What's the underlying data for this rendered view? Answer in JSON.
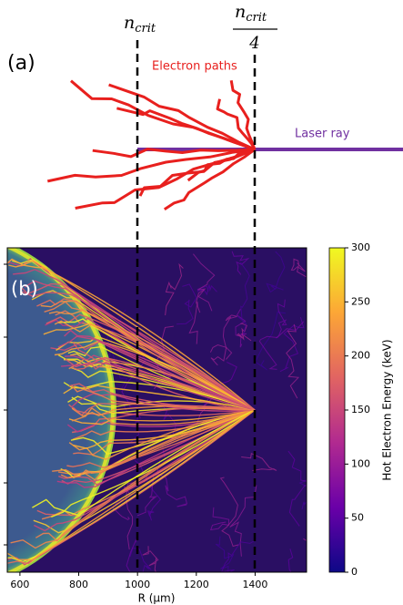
{
  "chart_data": {
    "type": "trajectory",
    "panel_a": {
      "label": "(a)",
      "electron_label": "Electron paths",
      "laser_label": "Laser ray",
      "crit_label": {
        "base": "n",
        "sub": "crit"
      },
      "quarter_label": {
        "base": "n",
        "sub": "crit",
        "denominator": "4"
      }
    },
    "panel_b": {
      "label": "(b)",
      "x_label": "R (μm)",
      "xlim": [
        557,
        1575
      ],
      "xticks": [
        600,
        800,
        1000,
        1200,
        1400
      ],
      "colorbar_label": "Hot Electron Energy (keV)",
      "clim": [
        0,
        300
      ],
      "cticks": [
        0,
        50,
        100,
        150,
        200,
        250,
        300
      ]
    }
  }
}
